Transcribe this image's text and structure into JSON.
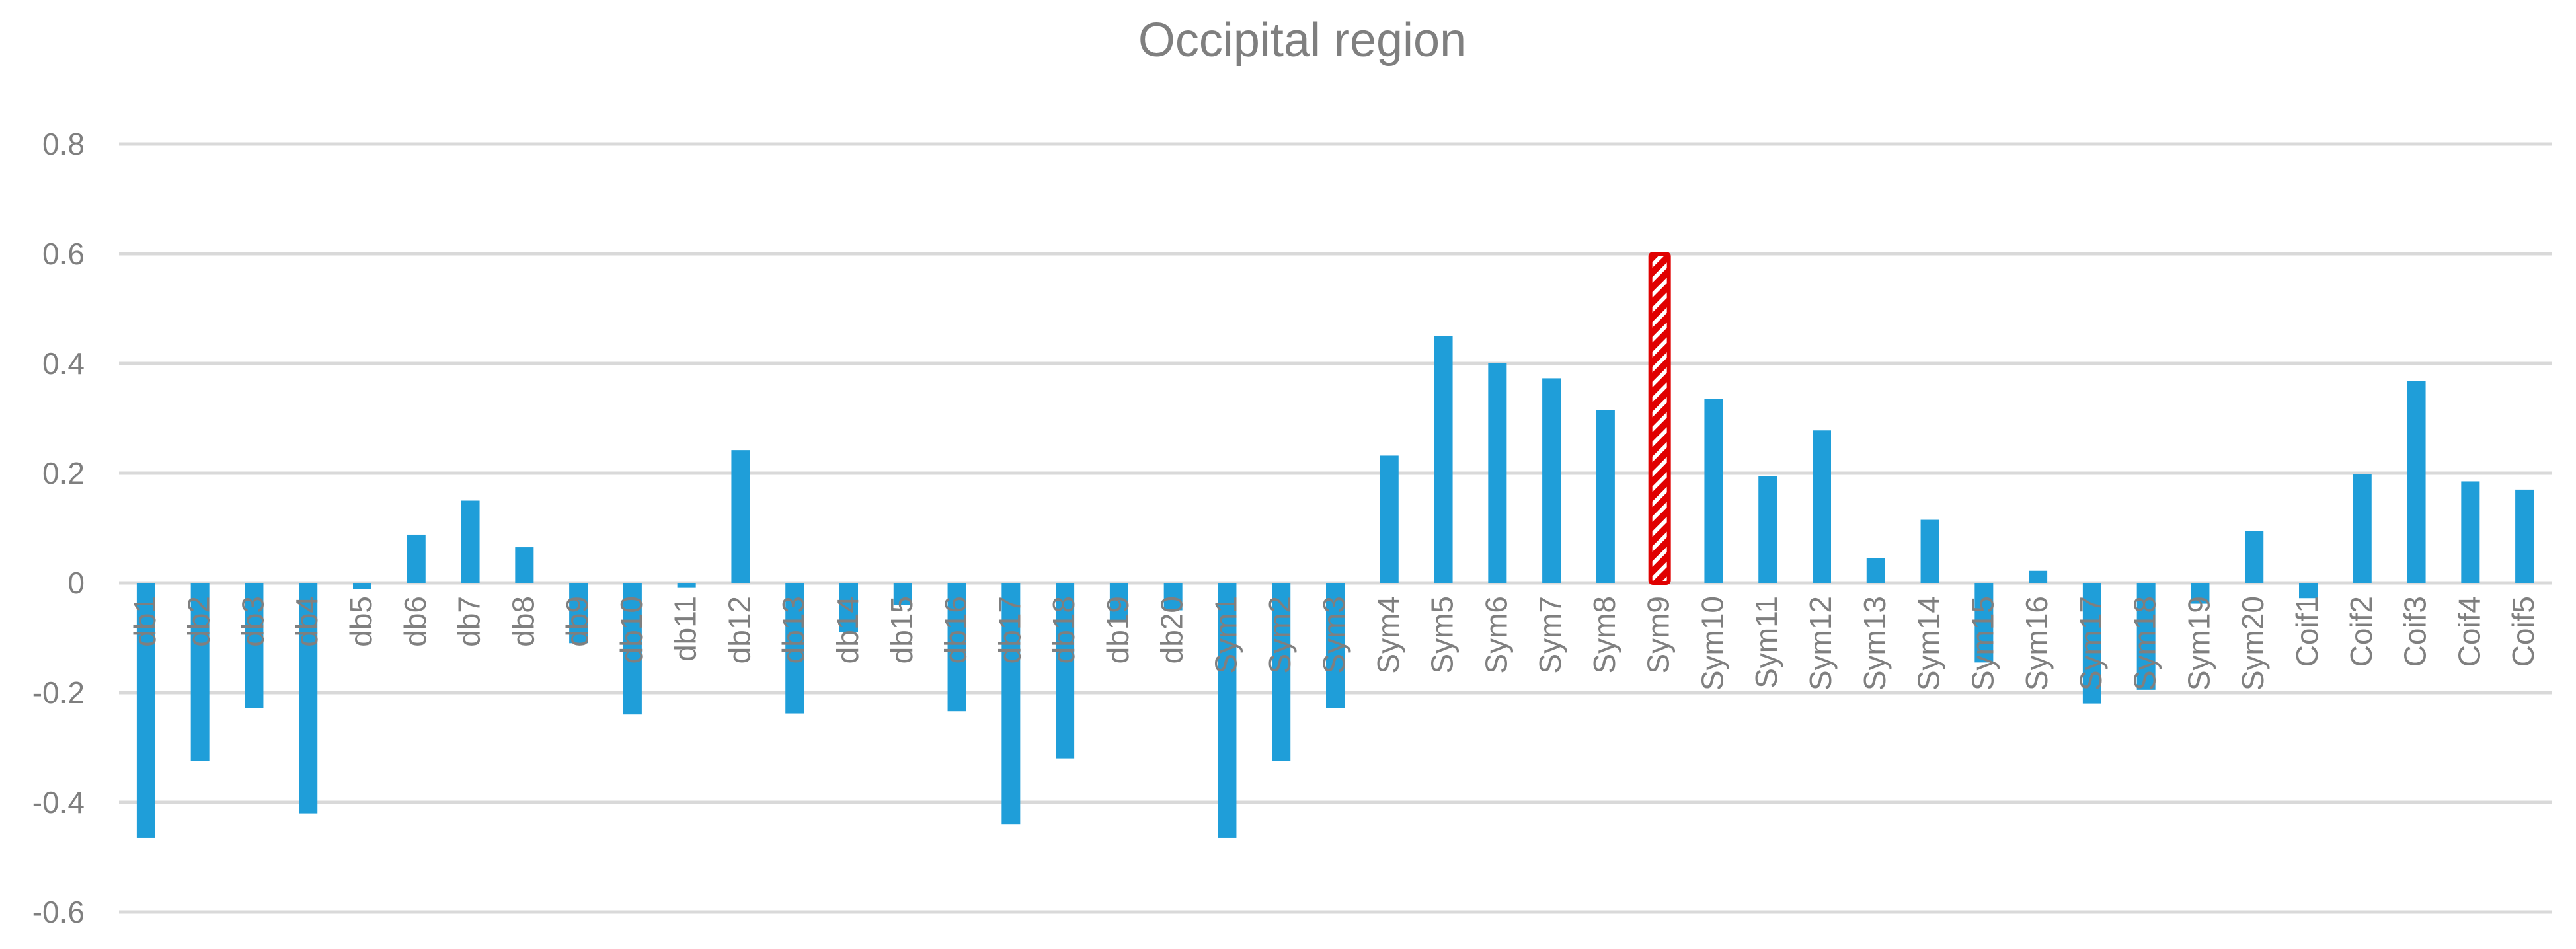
{
  "chart_data": {
    "type": "bar",
    "title": "Occipital region",
    "xlabel": "",
    "ylabel": "",
    "ylim": [
      -0.6,
      0.8
    ],
    "yticks": [
      "0.8",
      "0.6",
      "0.4",
      "0.2",
      "0",
      "-0.2",
      "-0.4",
      "-0.6"
    ],
    "grid": true,
    "legend": "none",
    "categories": [
      "db1",
      "db2",
      "db3",
      "db4",
      "db5",
      "db6",
      "db7",
      "db8",
      "db9",
      "db10",
      "db11",
      "db12",
      "db13",
      "db14",
      "db15",
      "db16",
      "db17",
      "db18",
      "db19",
      "db20",
      "Sym1",
      "Sym2",
      "Sym3",
      "Sym4",
      "Sym5",
      "Sym6",
      "Sym7",
      "Sym8",
      "Sym9",
      "Sym10",
      "Sym11",
      "Sym12",
      "Sym13",
      "Sym14",
      "Sym15",
      "Sym16",
      "Sym17",
      "Sym18",
      "Sym19",
      "Sym20",
      "Coif1",
      "Coif2",
      "Coif3",
      "Coif4",
      "Coif5"
    ],
    "values": [
      -0.465,
      -0.325,
      -0.228,
      -0.42,
      -0.012,
      0.088,
      0.15,
      0.065,
      -0.11,
      -0.24,
      -0.008,
      0.242,
      -0.238,
      -0.09,
      -0.04,
      -0.234,
      -0.44,
      -0.32,
      -0.07,
      -0.05,
      -0.465,
      -0.325,
      -0.228,
      0.232,
      0.45,
      0.4,
      0.373,
      0.315,
      0.6,
      0.335,
      0.195,
      0.278,
      0.045,
      0.115,
      -0.145,
      0.022,
      -0.22,
      -0.195,
      -0.038,
      0.095,
      -0.028,
      0.198,
      0.368,
      0.185,
      0.17
    ],
    "highlight": {
      "category": "Sym9",
      "color": "#e00000",
      "pattern": "red-white-hatched"
    },
    "bar_color": "#1f9ed9"
  }
}
